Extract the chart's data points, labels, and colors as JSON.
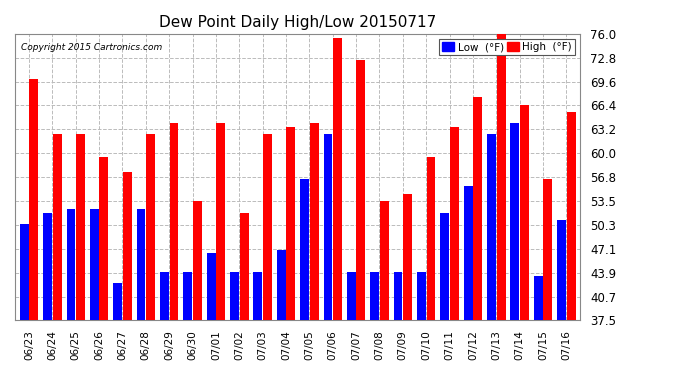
{
  "title": "Dew Point Daily High/Low 20150717",
  "copyright": "Copyright 2015 Cartronics.com",
  "categories": [
    "06/23",
    "06/24",
    "06/25",
    "06/26",
    "06/27",
    "06/28",
    "06/29",
    "06/30",
    "07/01",
    "07/02",
    "07/03",
    "07/04",
    "07/05",
    "07/06",
    "07/07",
    "07/08",
    "07/09",
    "07/10",
    "07/11",
    "07/12",
    "07/13",
    "07/14",
    "07/15",
    "07/16"
  ],
  "low_values": [
    50.5,
    52.0,
    52.5,
    52.5,
    42.5,
    52.5,
    44.0,
    44.0,
    46.5,
    44.0,
    44.0,
    47.0,
    56.5,
    62.5,
    44.0,
    44.0,
    44.0,
    44.0,
    52.0,
    55.5,
    62.5,
    64.0,
    43.5,
    51.0
  ],
  "high_values": [
    70.0,
    62.5,
    62.5,
    59.5,
    57.5,
    62.5,
    64.0,
    53.5,
    64.0,
    52.0,
    62.5,
    63.5,
    64.0,
    75.5,
    72.5,
    53.5,
    54.5,
    59.5,
    63.5,
    67.5,
    76.0,
    66.5,
    56.5,
    65.5
  ],
  "low_color": "#0000ff",
  "high_color": "#ff0000",
  "bg_color": "#ffffff",
  "grid_color": "#aaaaaa",
  "ylim": [
    37.5,
    76.0
  ],
  "ymin": 37.5,
  "yticks": [
    37.5,
    40.7,
    43.9,
    47.1,
    50.3,
    53.5,
    56.8,
    60.0,
    63.2,
    66.4,
    69.6,
    72.8,
    76.0
  ],
  "legend_low_label": "Low  (°F)",
  "legend_high_label": "High  (°F)"
}
